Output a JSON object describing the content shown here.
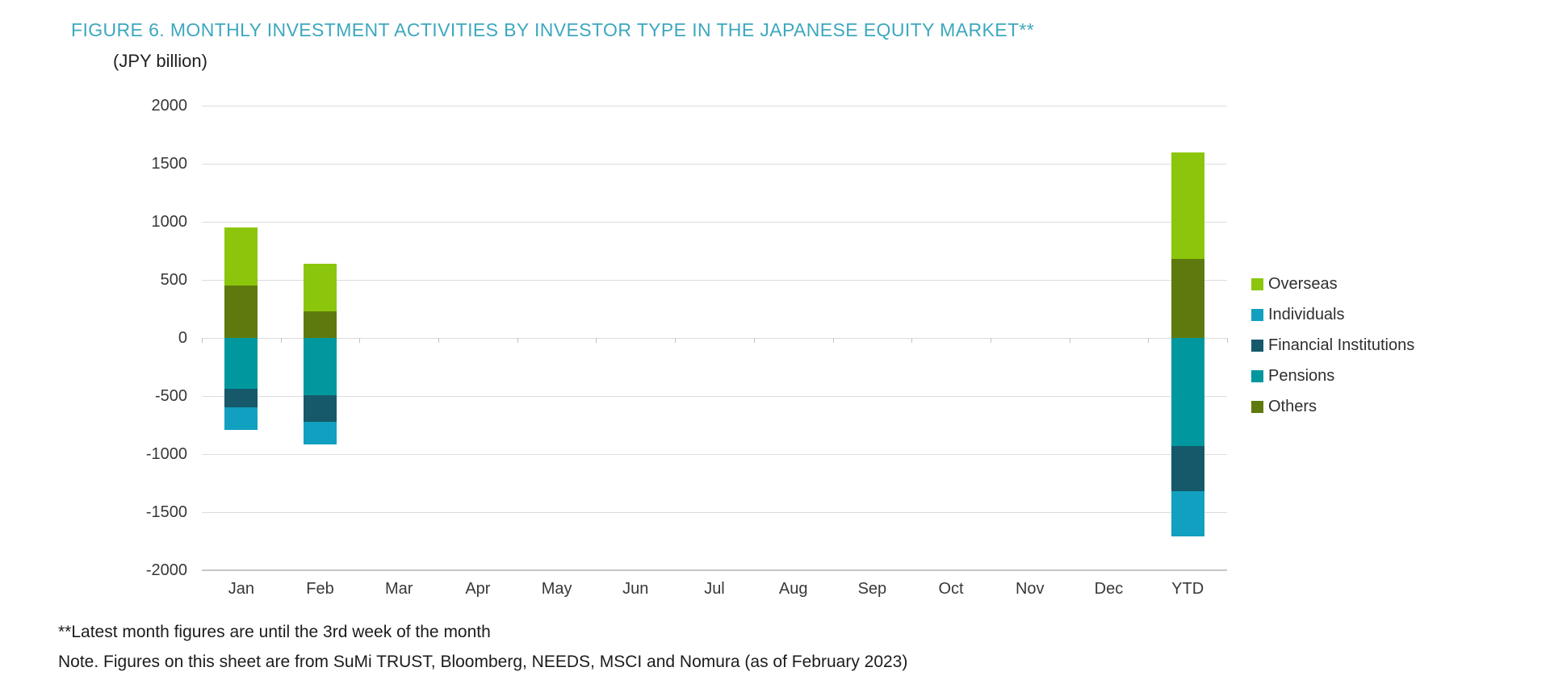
{
  "figure": {
    "title": "FIGURE 6. MONTHLY INVESTMENT ACTIVITIES BY INVESTOR TYPE IN THE JAPANESE EQUITY MARKET**",
    "unit_label": "(JPY billion)"
  },
  "chart_data": {
    "type": "bar",
    "stacked": true,
    "title": "FIGURE 6. MONTHLY INVESTMENT ACTIVITIES BY INVESTOR TYPE IN THE JAPANESE EQUITY MARKET**",
    "ylabel": "(JPY billion)",
    "xlabel": "",
    "categories": [
      "Jan",
      "Feb",
      "Mar",
      "Apr",
      "May",
      "Jun",
      "Jul",
      "Aug",
      "Sep",
      "Oct",
      "Nov",
      "Dec",
      "YTD"
    ],
    "series": [
      {
        "name": "Overseas",
        "color": "#8CC60C",
        "values": [
          500,
          410,
          0,
          0,
          0,
          0,
          0,
          0,
          0,
          0,
          0,
          0,
          920
        ]
      },
      {
        "name": "Individuals",
        "color": "#12A0C0",
        "values": [
          -190,
          -200,
          0,
          0,
          0,
          0,
          0,
          0,
          0,
          0,
          0,
          0,
          -390
        ]
      },
      {
        "name": "Financial Institutions",
        "color": "#16596A",
        "values": [
          -160,
          -230,
          0,
          0,
          0,
          0,
          0,
          0,
          0,
          0,
          0,
          0,
          -390
        ]
      },
      {
        "name": "Pensions",
        "color": "#00989E",
        "values": [
          -440,
          -490,
          0,
          0,
          0,
          0,
          0,
          0,
          0,
          0,
          0,
          0,
          -930
        ]
      },
      {
        "name": "Others",
        "color": "#5E7A0E",
        "values": [
          450,
          230,
          0,
          0,
          0,
          0,
          0,
          0,
          0,
          0,
          0,
          0,
          680
        ]
      }
    ],
    "positive_stack_order": [
      "Others",
      "Overseas"
    ],
    "negative_stack_order": [
      "Pensions",
      "Financial Institutions",
      "Individuals"
    ],
    "ylim": [
      -2000,
      2000
    ],
    "yticks": [
      2000,
      1500,
      1000,
      500,
      0,
      -500,
      -1000,
      -1500,
      -2000
    ],
    "grid": true,
    "legend_position": "right"
  },
  "legend": {
    "items": [
      {
        "label": "Overseas",
        "color": "#8CC60C"
      },
      {
        "label": "Individuals",
        "color": "#12A0C0"
      },
      {
        "label": "Financial Institutions",
        "color": "#16596A"
      },
      {
        "label": "Pensions",
        "color": "#00989E"
      },
      {
        "label": "Others",
        "color": "#5E7A0E"
      }
    ]
  },
  "footnotes": {
    "line1": "**Latest month figures are until the 3rd week of the month",
    "line2": "Note. Figures on this sheet are from SuMi TRUST, Bloomberg, NEEDS, MSCI and Nomura (as of February 2023)"
  },
  "colors": {
    "title": "#3DA8BE",
    "text": "#383838",
    "gridline": "#DCDCDC",
    "bottom_axis": "#C6C6C6"
  }
}
